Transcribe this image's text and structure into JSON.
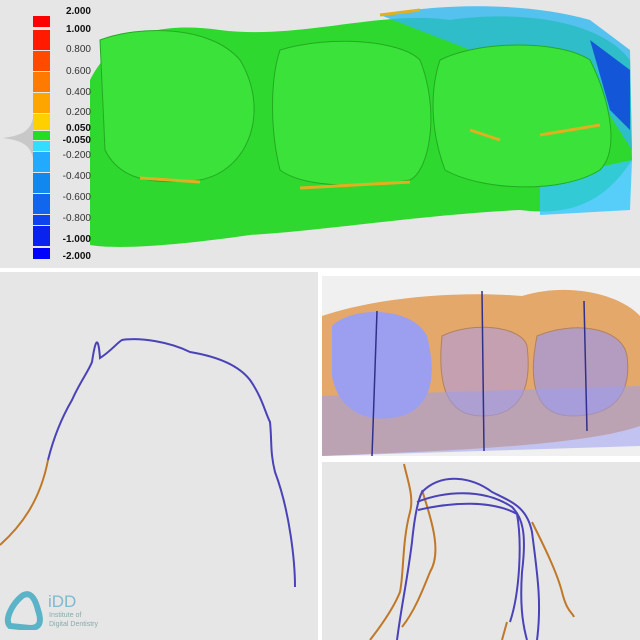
{
  "color_scale": {
    "labels": [
      "2.000",
      "1.000",
      "0.800",
      "0.600",
      "0.400",
      "0.200",
      "0.050",
      "-0.050",
      "-0.200",
      "-0.400",
      "-0.600",
      "-0.800",
      "-1.000",
      "-2.000"
    ],
    "colors": [
      "#ff0000",
      "#ff1a00",
      "#ff4a00",
      "#ff7a00",
      "#ffa500",
      "#ffd000",
      "#22dd22",
      "#33ddff",
      "#22aaff",
      "#1188ee",
      "#1166ee",
      "#0e44ee",
      "#0a22ee",
      "#0000ff"
    ]
  },
  "logo": {
    "abbr": "iDD",
    "name_line1": "Institute of",
    "name_line2": "Digital Dentistry"
  },
  "colors": {
    "reference": "#e3a86a",
    "scan": "#9c9ef0",
    "curve_ref": "#c07828",
    "curve_scan": "#4a42b8",
    "in_tolerance": "#22cc22"
  }
}
